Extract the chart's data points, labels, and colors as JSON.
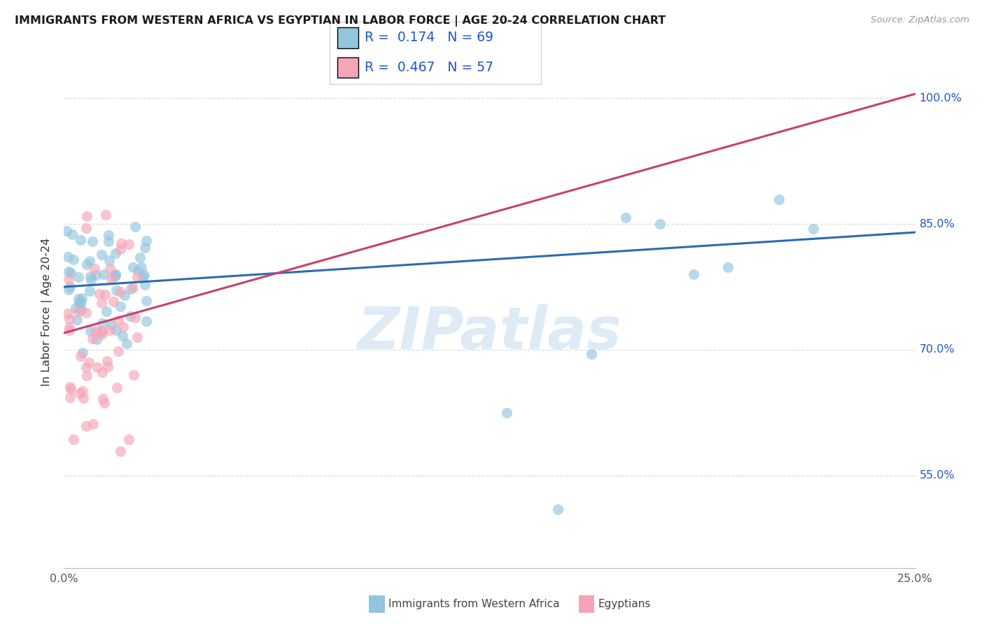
{
  "title": "IMMIGRANTS FROM WESTERN AFRICA VS EGYPTIAN IN LABOR FORCE | AGE 20-24 CORRELATION CHART",
  "source": "Source: ZipAtlas.com",
  "ylabel": "In Labor Force | Age 20-24",
  "blue_R": "0.174",
  "blue_N": "69",
  "pink_R": "0.467",
  "pink_N": "57",
  "blue_color": "#92c5de",
  "pink_color": "#f4a5b8",
  "blue_line_color": "#2b6cb0",
  "pink_line_color": "#c94070",
  "legend_label_blue": "Immigrants from Western Africa",
  "legend_label_pink": "Egyptians",
  "xmin": 0.0,
  "xmax": 0.25,
  "ymin": 0.44,
  "ymax": 1.05,
  "y_ticks": [
    0.55,
    0.7,
    0.85,
    1.0
  ],
  "y_tick_labels": [
    "55.0%",
    "70.0%",
    "85.0%",
    "100.0%"
  ],
  "blue_line_x": [
    0.0,
    0.25
  ],
  "blue_line_y": [
    0.775,
    0.84
  ],
  "pink_line_x": [
    0.0,
    0.25
  ],
  "pink_line_y": [
    0.72,
    1.005
  ],
  "watermark": "ZIPatlas",
  "background_color": "#ffffff",
  "title_color": "#1a1a1a",
  "source_color": "#999999",
  "stat_color": "#2255cc",
  "grid_color": "#dddddd"
}
